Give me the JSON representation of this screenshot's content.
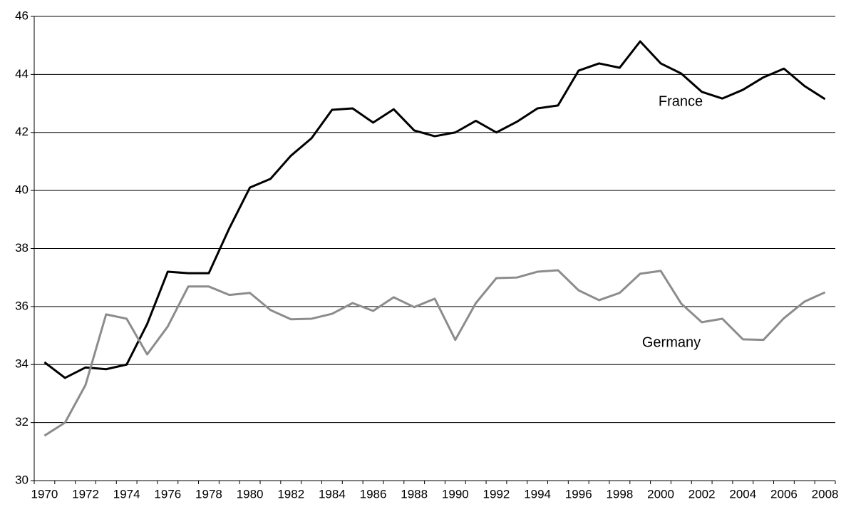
{
  "chart_data": {
    "type": "line",
    "categories": [
      "1970",
      null,
      "1972",
      null,
      "1974",
      null,
      "1976",
      null,
      "1978",
      null,
      "1980",
      null,
      "1982",
      null,
      "1984",
      null,
      "1986",
      null,
      "1988",
      null,
      "1990",
      null,
      "1992",
      null,
      "1994",
      null,
      "1996",
      null,
      "1998",
      null,
      "2000",
      null,
      "2002",
      null,
      "2004",
      null,
      "2006",
      null,
      "2008"
    ],
    "series": [
      {
        "name": "France",
        "color": "#000000",
        "values": [
          34.08,
          33.54,
          33.9,
          33.84,
          34.0,
          35.4,
          37.2,
          37.15,
          37.15,
          38.7,
          40.1,
          40.4,
          41.2,
          41.8,
          42.78,
          42.83,
          42.34,
          42.8,
          42.07,
          41.87,
          42.0,
          42.4,
          42.0,
          42.37,
          42.83,
          42.93,
          44.13,
          44.38,
          44.23,
          45.14,
          44.38,
          44.03,
          43.4,
          43.17,
          43.47,
          43.9,
          44.2,
          43.6,
          43.15
        ]
      },
      {
        "name": "Germany",
        "color": "#8c8c8c",
        "values": [
          31.55,
          32.0,
          33.3,
          35.73,
          35.58,
          34.35,
          35.31,
          36.69,
          36.69,
          36.4,
          36.47,
          35.88,
          35.56,
          35.58,
          35.75,
          36.12,
          35.85,
          36.32,
          35.98,
          36.27,
          34.85,
          36.12,
          36.98,
          37.0,
          37.2,
          37.25,
          36.56,
          36.22,
          36.47,
          37.13,
          37.23,
          36.1,
          35.46,
          35.58,
          34.87,
          34.85,
          35.6,
          36.17,
          36.49
        ]
      }
    ],
    "ylim": [
      30,
      46
    ],
    "yticks": [
      30,
      32,
      34,
      36,
      38,
      40,
      42,
      44,
      46
    ],
    "grid": true
  }
}
